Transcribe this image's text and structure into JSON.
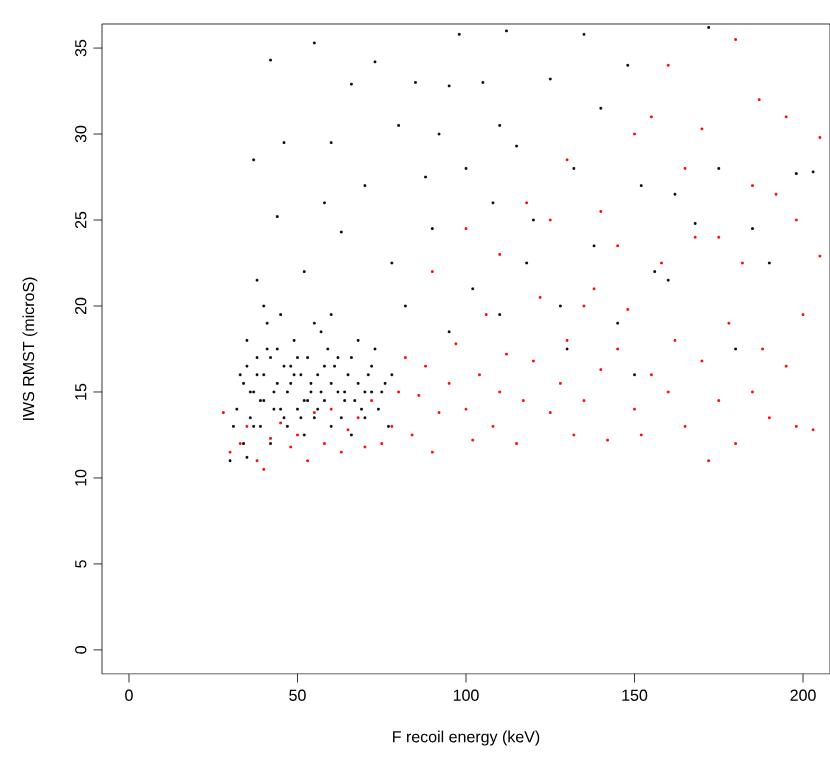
{
  "chart_data": {
    "type": "scatter",
    "xlabel": "F recoil energy (keV)",
    "ylabel": "IWS RMST (microS)",
    "xlim": [
      -8,
      208
    ],
    "ylim": [
      -1.4,
      36.4
    ],
    "xticks": [
      0,
      50,
      100,
      150,
      200
    ],
    "yticks": [
      0,
      5,
      10,
      15,
      20,
      25,
      30,
      35
    ],
    "grid": false,
    "marker": "square",
    "series": [
      {
        "color": "#000000",
        "x": [
          32,
          33,
          34,
          35,
          36,
          37,
          38,
          39,
          40,
          41,
          42,
          43,
          44,
          45,
          46,
          47,
          48,
          49,
          50,
          51,
          52,
          53,
          54,
          55,
          56,
          57,
          58,
          60,
          62,
          63,
          65,
          67,
          68,
          70,
          72,
          74,
          76,
          78,
          30,
          31,
          35,
          40,
          45,
          55,
          60,
          66,
          73,
          77,
          37,
          42,
          44,
          46,
          38,
          52,
          55,
          58,
          60,
          63,
          66,
          70,
          73,
          78,
          80,
          82,
          85,
          88,
          90,
          92,
          95,
          98,
          100,
          102,
          105,
          108,
          110,
          112,
          115,
          118,
          120,
          125,
          128,
          132,
          135,
          138,
          140,
          145,
          148,
          152,
          156,
          160,
          162,
          168,
          172,
          175,
          180,
          185,
          190,
          198,
          203,
          95,
          130,
          150,
          110,
          34,
          36,
          38,
          40,
          42,
          44,
          46,
          48,
          50,
          52,
          54,
          56,
          58,
          60,
          62,
          64,
          66,
          68,
          70,
          72,
          35,
          37,
          39,
          41,
          43,
          47,
          49,
          51,
          53,
          57,
          59,
          61,
          64,
          69,
          71,
          75
        ],
        "values": [
          14,
          16,
          12,
          18,
          15,
          13,
          17,
          14.5,
          16,
          19,
          12,
          15,
          17.5,
          14,
          16.5,
          13,
          15.5,
          18,
          14,
          16,
          12.5,
          17,
          15,
          13.5,
          16,
          18.5,
          14.5,
          15.5,
          17,
          13.5,
          16,
          14.5,
          18,
          15,
          16.5,
          14,
          15.5,
          16,
          11,
          13,
          11.2,
          20,
          19.5,
          19,
          19.5,
          12.5,
          17.5,
          13,
          28.5,
          34.3,
          25.2,
          29.5,
          21.5,
          22,
          35.3,
          26,
          29.5,
          24.3,
          32.9,
          27,
          34.2,
          22.5,
          30.5,
          20,
          33,
          27.5,
          24.5,
          30,
          32.8,
          35.8,
          28,
          21,
          33,
          26,
          30.5,
          36,
          29.3,
          22.5,
          25,
          33.2,
          20,
          28,
          35.8,
          23.5,
          31.5,
          19,
          34,
          27,
          22,
          21.5,
          26.5,
          24.8,
          36.2,
          28,
          17.5,
          24.5,
          22.5,
          27.7,
          27.8,
          18.5,
          17.5,
          16,
          19.5,
          15.5,
          13.5,
          16,
          14.5,
          17,
          15.5,
          13.5,
          16.5,
          17,
          14.5,
          15.5,
          14,
          16.5,
          13,
          15,
          14.5,
          17,
          15.5,
          13.5,
          15,
          16.5,
          15,
          13,
          17.5,
          14,
          15,
          16,
          13.5,
          14.5,
          15,
          17.5,
          16.5,
          15,
          14,
          16,
          15
        ]
      },
      {
        "color": "#ff0000",
        "x": [
          28,
          30,
          33,
          35,
          38,
          40,
          42,
          45,
          48,
          50,
          53,
          55,
          58,
          60,
          63,
          65,
          68,
          70,
          72,
          75,
          78,
          80,
          82,
          84,
          86,
          88,
          90,
          92,
          95,
          97,
          100,
          102,
          104,
          106,
          108,
          110,
          112,
          115,
          117,
          120,
          122,
          125,
          128,
          130,
          132,
          135,
          138,
          140,
          142,
          145,
          148,
          150,
          152,
          155,
          158,
          160,
          162,
          165,
          168,
          170,
          172,
          175,
          178,
          180,
          182,
          185,
          188,
          190,
          192,
          195,
          198,
          200,
          203,
          205,
          205,
          90,
          100,
          110,
          118,
          125,
          130,
          140,
          150,
          155,
          160,
          165,
          170,
          180,
          187,
          195,
          175,
          185,
          198,
          145,
          135
        ],
        "values": [
          13.8,
          11.5,
          12,
          13,
          11,
          10.5,
          12.3,
          13.2,
          11.8,
          12.5,
          11,
          13.8,
          12,
          14,
          11.5,
          12.8,
          13.5,
          11.8,
          14.5,
          12,
          13,
          15,
          17,
          12.5,
          14.8,
          16.5,
          11.5,
          13.8,
          15.5,
          17.8,
          14,
          12.2,
          16,
          19.5,
          13,
          15,
          17.2,
          12,
          14.5,
          16.8,
          20.5,
          13.8,
          15.5,
          18,
          12.5,
          14.5,
          21,
          16.3,
          12.2,
          17.5,
          19.8,
          14,
          12.5,
          16,
          22.5,
          15,
          18,
          13,
          24,
          16.8,
          11,
          14.5,
          19,
          12,
          22.5,
          15,
          17.5,
          13.5,
          26.5,
          16.5,
          13,
          19.5,
          12.8,
          22.9,
          29.8,
          22,
          24.5,
          23,
          26,
          25,
          28.5,
          25.5,
          30,
          31,
          34,
          28,
          30.3,
          35.5,
          32,
          31,
          24,
          27,
          25,
          23.5,
          20
        ]
      }
    ]
  }
}
